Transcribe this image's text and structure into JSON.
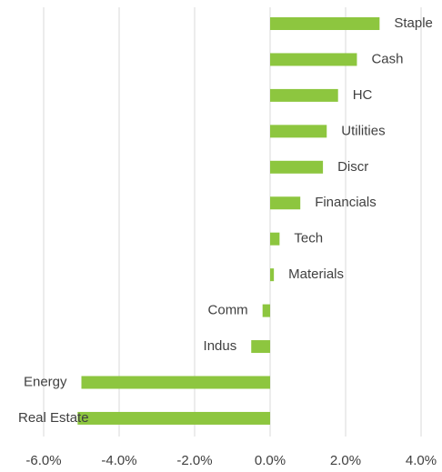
{
  "chart_data": {
    "type": "barh",
    "categories": [
      "Staple",
      "Cash",
      "HC",
      "Utilities",
      "Discr",
      "Financials",
      "Tech",
      "Materials",
      "Comm",
      "Indus",
      "Energy",
      "Real Estate"
    ],
    "values": [
      2.9,
      2.3,
      1.8,
      1.5,
      1.4,
      0.8,
      0.25,
      0.1,
      -0.2,
      -0.5,
      -5.0,
      -5.1
    ],
    "color": "#8dc63f",
    "xlim": [
      -6,
      4
    ],
    "xticks": [
      {
        "value": -6,
        "label": "-6.0%"
      },
      {
        "value": -4,
        "label": "-4.0%"
      },
      {
        "value": -2,
        "label": "-2.0%"
      },
      {
        "value": 0,
        "label": "0.0%"
      },
      {
        "value": 2,
        "label": "2.0%"
      },
      {
        "value": 4,
        "label": "4.0%"
      }
    ],
    "grid": true
  }
}
